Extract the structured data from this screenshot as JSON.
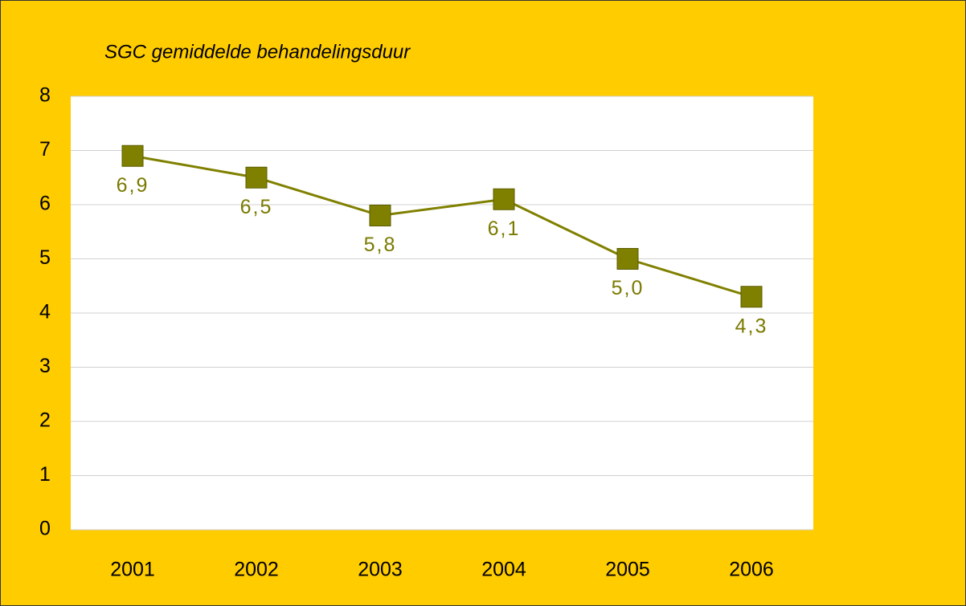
{
  "chart_data": {
    "type": "line",
    "title": "SGC gemiddelde behandelingsduur",
    "categories": [
      "2001",
      "2002",
      "2003",
      "2004",
      "2005",
      "2006"
    ],
    "series": [
      {
        "name": "behandelingsduur",
        "color": "#808000",
        "values": [
          6.9,
          6.5,
          5.8,
          6.1,
          5.0,
          4.3
        ],
        "value_labels": [
          "6,9",
          "6,5",
          "5,8",
          "6,1",
          "5,0",
          "4,3"
        ]
      }
    ],
    "ylim": [
      0,
      8
    ],
    "yticks": [
      0,
      1,
      2,
      3,
      4,
      5,
      6,
      7,
      8
    ],
    "grid": true
  }
}
